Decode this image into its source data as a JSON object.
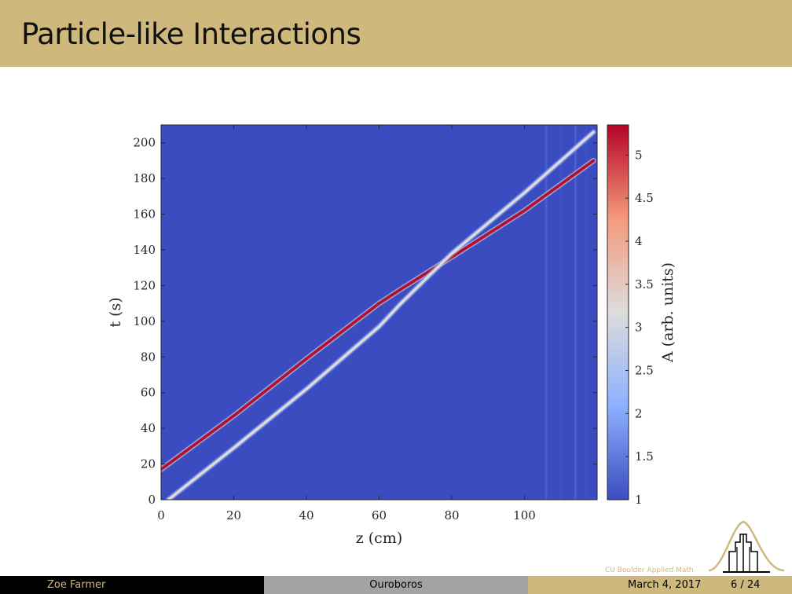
{
  "slide": {
    "title": "Particle-like Interactions"
  },
  "footer": {
    "author": "Zoe Farmer",
    "talk_title": "Ouroboros",
    "date": "March 4, 2017",
    "page": "6 / 24"
  },
  "logo": {
    "caption": "CU Boulder Applied Math",
    "icon": "cu-buildings-logo-icon"
  },
  "colors": {
    "header_gold": "#cfb87c",
    "background": "#3b4dc2",
    "soliton_fast": "#b40426",
    "soliton_slow": "#dddcdc"
  },
  "chart_data": {
    "type": "heatmap",
    "xlabel": "z (cm)",
    "ylabel": "t (s)",
    "colorbar_label": "A (arb. units)",
    "xlim": [
      0,
      120
    ],
    "ylim": [
      0,
      210
    ],
    "xticks": [
      0,
      20,
      40,
      60,
      80,
      100
    ],
    "yticks": [
      0,
      20,
      40,
      60,
      80,
      100,
      120,
      140,
      160,
      180,
      200
    ],
    "colorbar_range": [
      1,
      5.35
    ],
    "colorbar_ticks": [
      "1",
      "1.5",
      "2",
      "2.5",
      "3",
      "3.5",
      "4",
      "4.5",
      "5"
    ],
    "background_value": 1,
    "series": [
      {
        "name": "",
        "amplitude": 5.3,
        "points": [
          [
            0,
            17
          ],
          [
            20,
            47
          ],
          [
            40,
            79
          ],
          [
            60,
            110
          ],
          [
            66,
            118
          ],
          [
            80,
            136
          ],
          [
            100,
            162
          ],
          [
            119,
            190
          ]
        ]
      },
      {
        "name": "",
        "amplitude": 3.2,
        "points": [
          [
            2,
            0
          ],
          [
            20,
            29
          ],
          [
            40,
            62
          ],
          [
            60,
            97
          ],
          [
            66,
            110
          ],
          [
            80,
            138
          ],
          [
            100,
            172
          ],
          [
            119,
            206
          ]
        ]
      }
    ]
  }
}
